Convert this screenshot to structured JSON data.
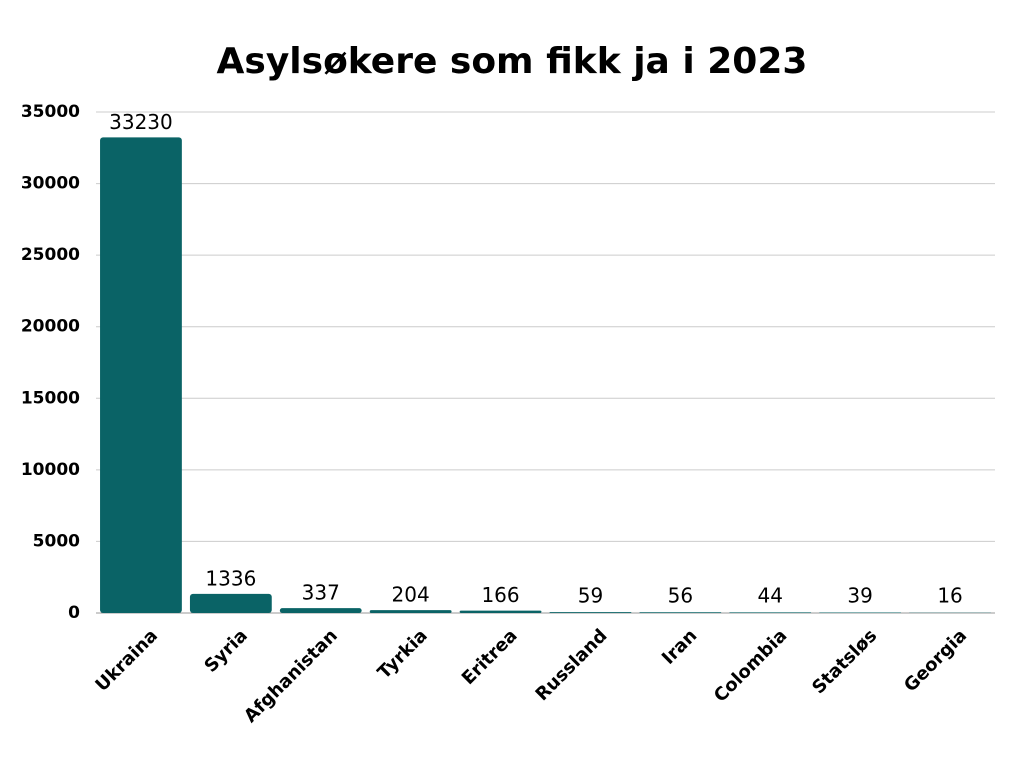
{
  "chart_data": {
    "type": "bar",
    "title": "Asylsøkere som fikk ja i 2023",
    "categories": [
      "Ukraina",
      "Syria",
      "Afghanistan",
      "Tyrkia",
      "Eritrea",
      "Russland",
      "Iran",
      "Colombia",
      "Statsløs",
      "Georgia"
    ],
    "values": [
      33230,
      1336,
      337,
      204,
      166,
      59,
      56,
      44,
      39,
      16
    ],
    "color": "#0a6366",
    "ylim": [
      0,
      35000
    ],
    "yticks": [
      0,
      5000,
      10000,
      15000,
      20000,
      25000,
      30000,
      35000
    ],
    "grid": true
  }
}
